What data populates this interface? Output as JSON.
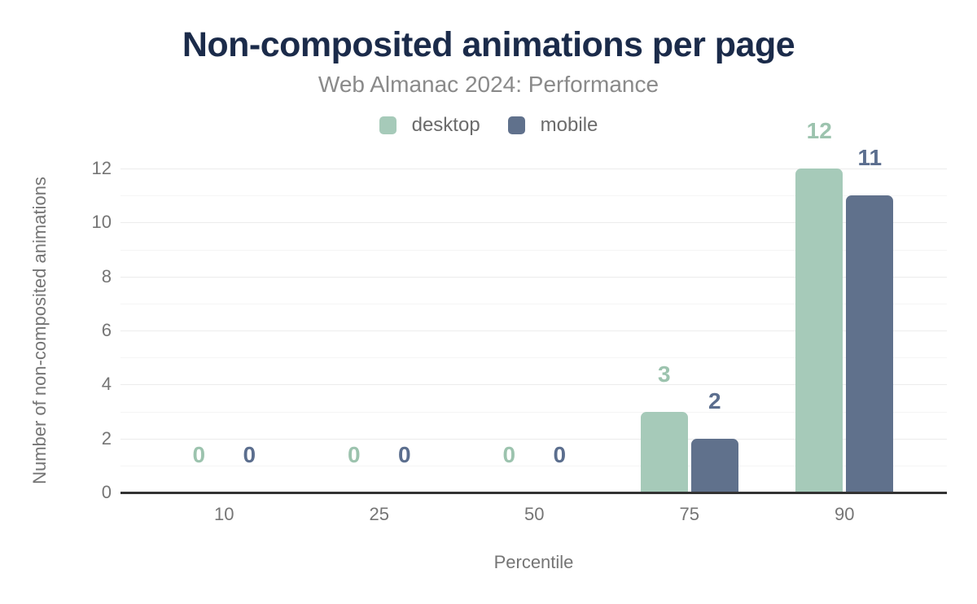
{
  "chart_data": {
    "type": "bar",
    "title": "Non-composited animations per page",
    "subtitle": "Web Almanac 2024: Performance",
    "categories": [
      "10",
      "25",
      "50",
      "75",
      "90"
    ],
    "series": [
      {
        "name": "desktop",
        "values": [
          0,
          0,
          0,
          3,
          12
        ],
        "color": "#a6cab9",
        "label_color": "#9cc3ae"
      },
      {
        "name": "mobile",
        "values": [
          0,
          0,
          0,
          2,
          11
        ],
        "color": "#60718c",
        "label_color": "#5b6e8e"
      }
    ],
    "xlabel": "Percentile",
    "ylabel": "Number of non-composited animations",
    "ylim": [
      0,
      12
    ],
    "yticks": [
      0,
      2,
      4,
      6,
      8,
      10,
      12
    ],
    "grid": "horizontal lines at every integer from 1 to 12",
    "legend_position": "top center",
    "value_labels": "shown above each bar in series color"
  },
  "colors": {
    "background": "#ffffff",
    "title": "#1b2b4a",
    "subtitle": "#8a8a8a",
    "legend_text": "#6b6b6b",
    "tick_text": "#757575",
    "axis_title_text": "#757575",
    "axis_line": "#333333",
    "grid_major": "#ececec",
    "grid_minor": "#f5f5f5"
  }
}
